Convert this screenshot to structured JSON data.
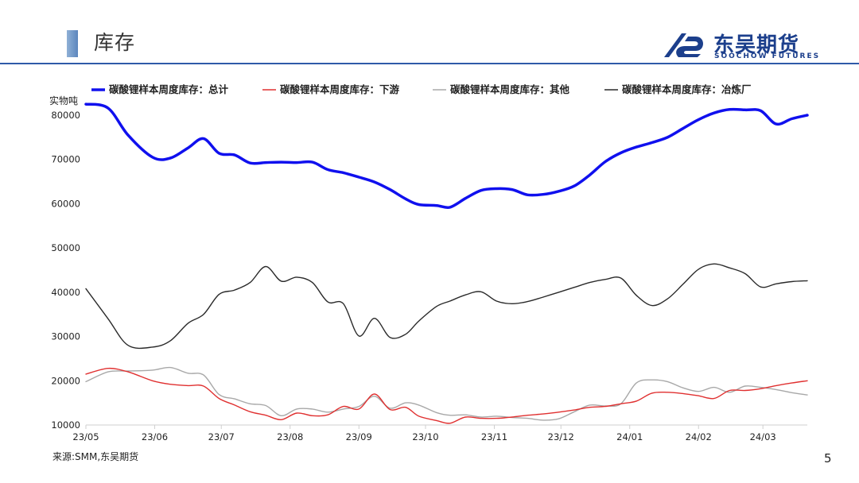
{
  "header": {
    "title": "库存",
    "logo_cn": "东吴期货",
    "logo_en": "SOOCHOW FUTURES"
  },
  "footer": {
    "source": "来源:SMM,东吴期货",
    "page_number": "5"
  },
  "colors": {
    "accent": "#2f5aa8",
    "brand": "#1c3f8c"
  },
  "chart_data": {
    "type": "line",
    "ylabel": "实物吨",
    "ylim": [
      10000,
      80000
    ],
    "yticks": [
      10000,
      20000,
      30000,
      40000,
      50000,
      60000,
      70000,
      80000
    ],
    "xticks": [
      "23/05",
      "23/06",
      "23/07",
      "23/08",
      "23/09",
      "23/10",
      "23/11",
      "23/12",
      "24/01",
      "24/02",
      "24/03"
    ],
    "legend_position": "top",
    "grid": false,
    "x": [
      "2023-05-01",
      "2023-05-11",
      "2023-05-20",
      "2023-05-31",
      "2023-06-08",
      "2023-06-16",
      "2023-06-23",
      "2023-06-30",
      "2023-07-07",
      "2023-07-14",
      "2023-07-21",
      "2023-07-28",
      "2023-08-04",
      "2023-08-11",
      "2023-08-18",
      "2023-08-25",
      "2023-09-01",
      "2023-09-08",
      "2023-09-15",
      "2023-09-22",
      "2023-09-28",
      "2023-10-06",
      "2023-10-12",
      "2023-10-19",
      "2023-10-26",
      "2023-11-02",
      "2023-11-09",
      "2023-11-16",
      "2023-11-23",
      "2023-11-30",
      "2023-12-07",
      "2023-12-14",
      "2023-12-21",
      "2023-12-28",
      "2024-01-04",
      "2024-01-11",
      "2024-01-18",
      "2024-01-25",
      "2024-02-01",
      "2024-02-08",
      "2024-02-15",
      "2024-02-22",
      "2024-02-29",
      "2024-03-07",
      "2024-03-14",
      "2024-03-21"
    ],
    "series": [
      {
        "name": "碳酸锂样本周度库存：总计",
        "color": "#1010ee",
        "width": 3.5,
        "values": [
          82500,
          81600,
          75500,
          70500,
          70300,
          72600,
          74700,
          71400,
          71000,
          69200,
          69300,
          69400,
          69300,
          69400,
          67700,
          67000,
          66000,
          64900,
          63200,
          61100,
          59800,
          59600,
          59200,
          61200,
          63000,
          63400,
          63200,
          62000,
          62100,
          62800,
          64000,
          66500,
          69500,
          71500,
          72800,
          73800,
          75000,
          77000,
          79000,
          80500,
          81300,
          81200,
          81000,
          78000,
          79200,
          80000
        ]
      },
      {
        "name": "碳酸锂样本周度库存：下游",
        "color": "#e03030",
        "width": 1.4,
        "values": [
          21500,
          22800,
          22000,
          20000,
          19200,
          18900,
          18800,
          16000,
          14500,
          13000,
          12200,
          11200,
          12700,
          12100,
          12300,
          14200,
          13600,
          17000,
          13500,
          14000,
          12000,
          11000,
          10400,
          11800,
          11500,
          11500,
          11800,
          12200,
          12500,
          12900,
          13400,
          14000,
          14200,
          14800,
          15400,
          17200,
          17400,
          17100,
          16600,
          16000,
          17800,
          17800,
          18200,
          18900,
          19500,
          20000
        ]
      },
      {
        "name": "碳酸锂样本周度库存：其他",
        "color": "#a8a8a8",
        "width": 1.4,
        "values": [
          19800,
          22000,
          22200,
          22400,
          23000,
          21700,
          21300,
          16900,
          15900,
          14800,
          14400,
          12100,
          13600,
          13600,
          12900,
          13600,
          14200,
          16500,
          13800,
          15000,
          14500,
          12800,
          12200,
          12300,
          11800,
          12000,
          11700,
          11500,
          11100,
          11400,
          13000,
          14500,
          14300,
          14800,
          19500,
          20200,
          19800,
          18400,
          17600,
          18500,
          17400,
          18800,
          18500,
          18000,
          17300,
          16800
        ]
      },
      {
        "name": "碳酸锂样本周度库存：冶炼厂",
        "color": "#2a2a2a",
        "width": 1.4,
        "values": [
          40800,
          34000,
          28000,
          27600,
          29000,
          33000,
          35000,
          39500,
          40500,
          42200,
          45800,
          42500,
          43400,
          42200,
          37800,
          37400,
          30100,
          34100,
          29800,
          30500,
          33500,
          36800,
          38000,
          39400,
          40100,
          38000,
          37400,
          37900,
          38900,
          40000,
          41100,
          42200,
          42900,
          43200,
          39300,
          37000,
          38500,
          41800,
          45200,
          46400,
          45500,
          44200,
          41200,
          41900,
          42400,
          42600
        ]
      }
    ]
  }
}
